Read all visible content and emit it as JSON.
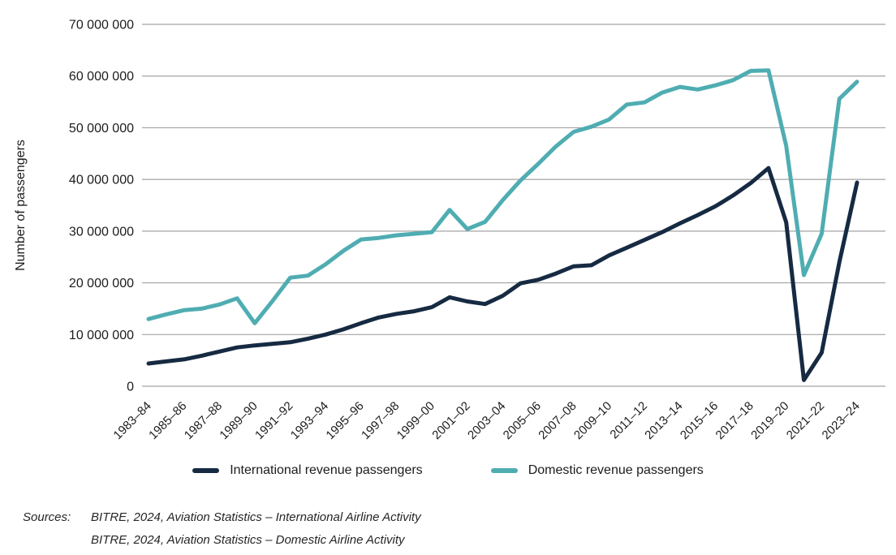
{
  "figure": {
    "background": "#ffffff",
    "text_color": "#1c1c1c",
    "gridline_color": "#a3a3a3"
  },
  "chart_data": {
    "type": "line",
    "title": "",
    "xlabel": "",
    "ylabel": "Number of passengers",
    "ylim": [
      0,
      70000000
    ],
    "ytick_step": 10000000,
    "ytick_labels": [
      "0",
      "10 000 000",
      "20 000 000",
      "30 000 000",
      "40 000 000",
      "50 000 000",
      "60 000 000",
      "70 000 000"
    ],
    "grid": "horizontal-only",
    "legend_position": "bottom-center",
    "xtick_label_every": 2,
    "categories": [
      "1983–84",
      "1984–85",
      "1985–86",
      "1986–87",
      "1987–88",
      "1988–89",
      "1989–90",
      "1990–91",
      "1991–92",
      "1992–93",
      "1993–94",
      "1994–95",
      "1995–96",
      "1996–97",
      "1997–98",
      "1998–99",
      "1999–00",
      "2000–01",
      "2001–02",
      "2002–03",
      "2003–04",
      "2004–05",
      "2005–06",
      "2006–07",
      "2007–08",
      "2008–09",
      "2009–10",
      "2010–11",
      "2011–12",
      "2012–13",
      "2013–14",
      "2014–15",
      "2015–16",
      "2016–17",
      "2017–18",
      "2018–19",
      "2019–20",
      "2020–21",
      "2021–22",
      "2022–23",
      "2023–24"
    ],
    "series": [
      {
        "name": "International revenue passengers",
        "color": "#162a42",
        "values": [
          4400000,
          4800000,
          5200000,
          5900000,
          6700000,
          7500000,
          7900000,
          8200000,
          8500000,
          9200000,
          10000000,
          11000000,
          12200000,
          13300000,
          14000000,
          14500000,
          15300000,
          17200000,
          16400000,
          15900000,
          17500000,
          19900000,
          20600000,
          21800000,
          23200000,
          23400000,
          25300000,
          26800000,
          28300000,
          29800000,
          31500000,
          33100000,
          34800000,
          36900000,
          39300000,
          42200000,
          31700000,
          1200000,
          6500000,
          24000000,
          39400000
        ]
      },
      {
        "name": "Domestic revenue passengers",
        "color": "#4fadb2",
        "values": [
          13000000,
          13900000,
          14700000,
          15000000,
          15800000,
          17000000,
          12200000,
          16500000,
          21000000,
          21400000,
          23600000,
          26200000,
          28400000,
          28700000,
          29200000,
          29500000,
          29800000,
          34100000,
          30400000,
          31800000,
          36000000,
          39800000,
          43000000,
          46400000,
          49200000,
          50200000,
          51600000,
          54500000,
          54900000,
          56800000,
          57900000,
          57400000,
          58200000,
          59200000,
          61000000,
          61100000,
          46500000,
          21500000,
          29500000,
          55600000,
          58900000
        ]
      }
    ]
  },
  "sources": {
    "label": "Sources:",
    "lines": [
      "BITRE, 2024, Aviation Statistics – International Airline Activity",
      "BITRE, 2024, Aviation Statistics – Domestic Airline Activity"
    ]
  }
}
